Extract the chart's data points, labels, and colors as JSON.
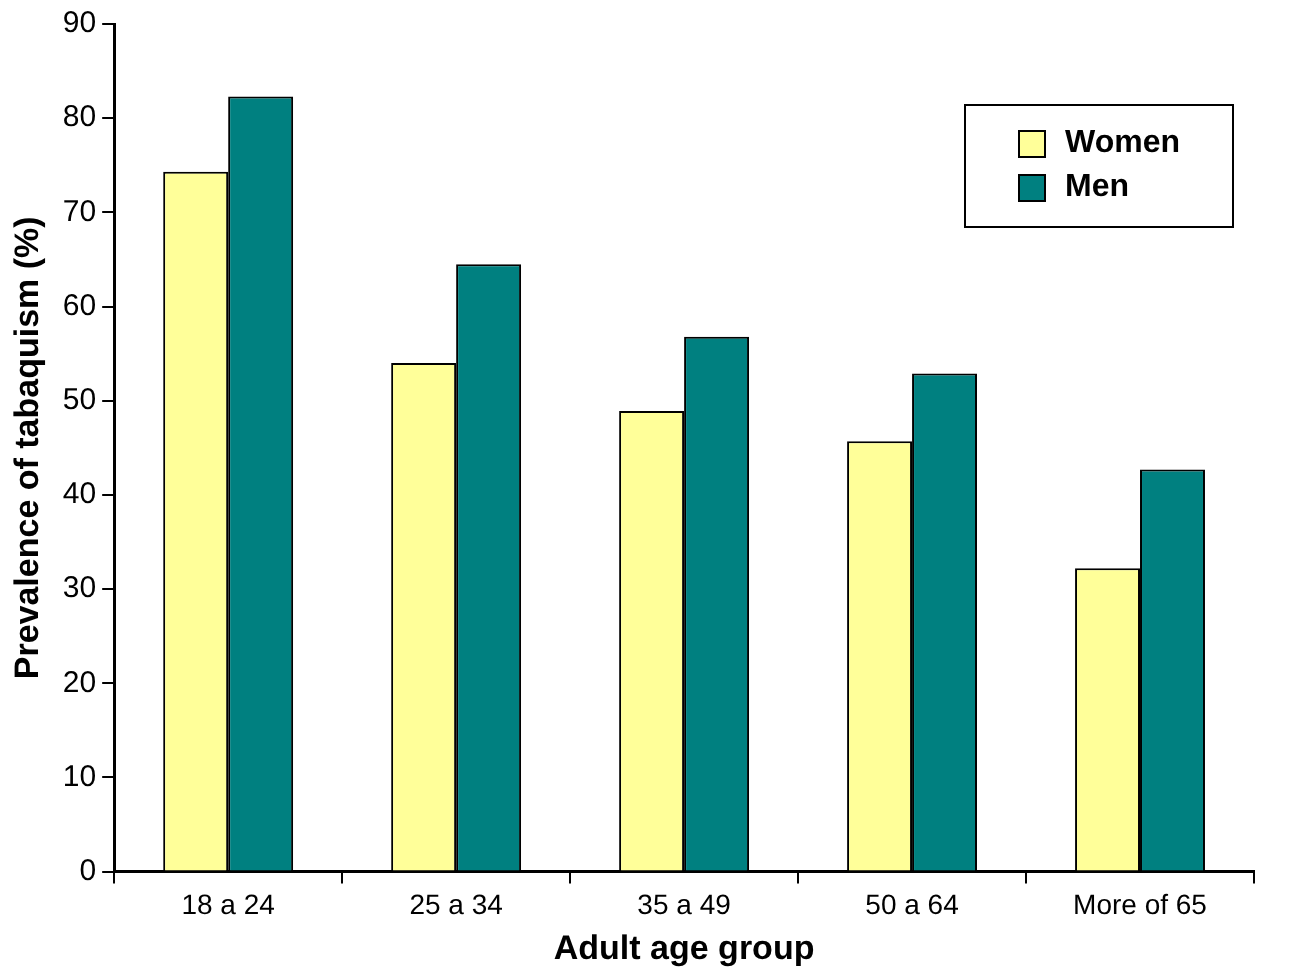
{
  "chart_data": {
    "type": "bar",
    "xlabel": "Adult age group",
    "ylabel": "Prevalence of tabaquism (%)",
    "categories": [
      "18 a 24",
      "25 a 34",
      "35 a 49",
      "50 a 64",
      "More of 65"
    ],
    "series": [
      {
        "name": "Women",
        "color": "#ffff99",
        "values": [
          74.3,
          54.0,
          48.9,
          45.7,
          32.2
        ]
      },
      {
        "name": "Men",
        "color": "#008080",
        "values": [
          82.3,
          64.5,
          56.8,
          52.9,
          42.7
        ]
      }
    ],
    "ylim": [
      0,
      90
    ],
    "yticks": [
      0,
      10,
      20,
      30,
      40,
      50,
      60,
      70,
      80,
      90
    ],
    "grid": false,
    "legend": "top right"
  }
}
